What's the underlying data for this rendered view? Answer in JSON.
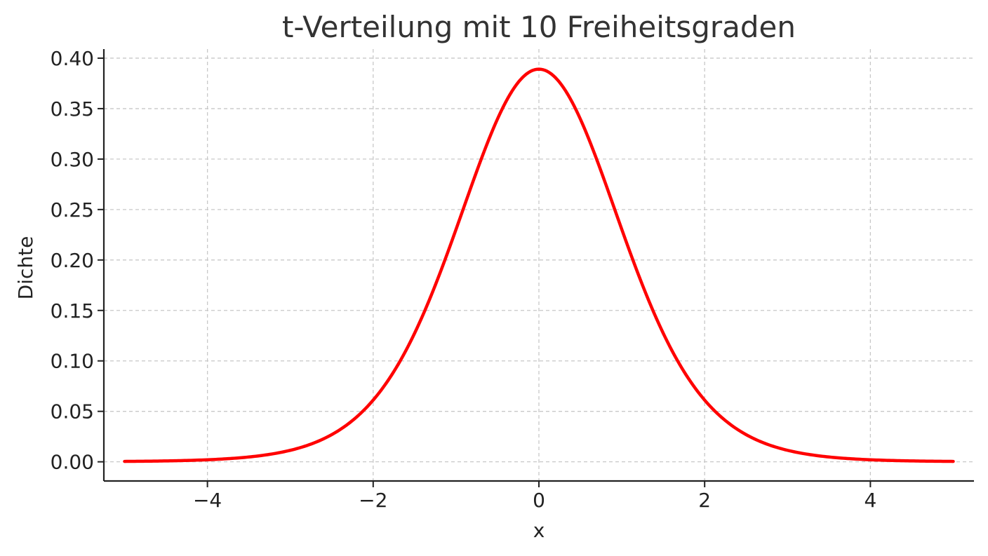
{
  "chart_data": {
    "type": "line",
    "title": "t-Verteilung mit 10 Freiheitsgraden",
    "xlabel": "x",
    "ylabel": "Dichte",
    "xlim": [
      -5.25,
      5.25
    ],
    "ylim": [
      -0.019,
      0.409
    ],
    "x_ticks": [
      -4,
      -2,
      0,
      2,
      4
    ],
    "x_tick_labels": [
      "−4",
      "−2",
      "0",
      "2",
      "4"
    ],
    "y_ticks": [
      0.0,
      0.05,
      0.1,
      0.15,
      0.2,
      0.25,
      0.3,
      0.35,
      0.4
    ],
    "y_tick_labels": [
      "0.00",
      "0.05",
      "0.10",
      "0.15",
      "0.20",
      "0.25",
      "0.30",
      "0.35",
      "0.40"
    ],
    "grid": true,
    "series": [
      {
        "color": "#ff0000",
        "x": [
          -5.0,
          -4.5,
          -4.0,
          -3.5,
          -3.0,
          -2.5,
          -2.0,
          -1.5,
          -1.0,
          -0.5,
          0.0,
          0.5,
          1.0,
          1.5,
          2.0,
          2.5,
          3.0,
          3.5,
          4.0,
          4.5,
          5.0
        ],
        "y": [
          0.0004,
          0.0011,
          0.0028,
          0.0071,
          0.0173,
          0.0371,
          0.0611,
          0.1274,
          0.2304,
          0.3402,
          0.3891,
          0.3402,
          0.2304,
          0.1274,
          0.0611,
          0.0371,
          0.0173,
          0.0071,
          0.0028,
          0.0011,
          0.0004
        ]
      }
    ]
  }
}
